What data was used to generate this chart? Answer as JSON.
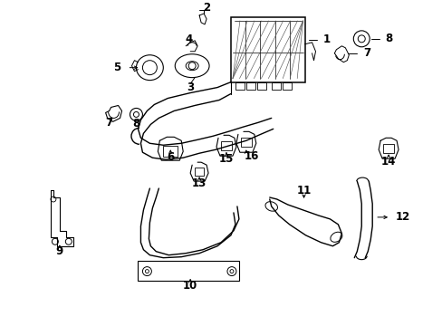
{
  "bg_color": "#ffffff",
  "line_color": "#000000",
  "fig_width": 4.89,
  "fig_height": 3.6,
  "dpi": 100,
  "label_fontsize": 8.5
}
